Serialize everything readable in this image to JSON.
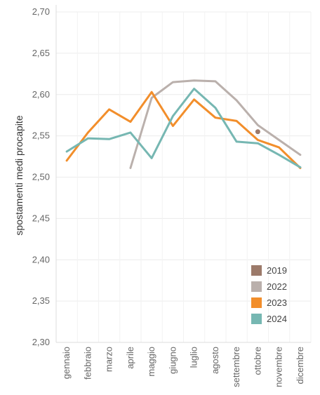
{
  "chart_data": {
    "type": "line",
    "ylabel": "spostamenti medi procapite",
    "xlabel": "",
    "title": "",
    "ylim": [
      2.3,
      2.7
    ],
    "yticks": [
      "2,70",
      "2,65",
      "2,60",
      "2,55",
      "2,50",
      "2,45",
      "2,40",
      "2,35",
      "2,30"
    ],
    "ytick_values": [
      2.7,
      2.65,
      2.6,
      2.55,
      2.5,
      2.45,
      2.4,
      2.35,
      2.3
    ],
    "categories": [
      "gennaio",
      "febbraio",
      "marzo",
      "aprile",
      "maggio",
      "giugno",
      "luglio",
      "agosto",
      "settembre",
      "ottobre",
      "novembre",
      "dicembre"
    ],
    "grid": true,
    "legend_position": "bottom-right",
    "series": [
      {
        "name": "2019",
        "color": "#9c7a6a",
        "marker_only": true,
        "values": [
          null,
          null,
          null,
          null,
          null,
          null,
          null,
          null,
          null,
          2.555,
          null,
          null
        ]
      },
      {
        "name": "2022",
        "color": "#bab0ac",
        "values": [
          null,
          null,
          null,
          2.511,
          2.596,
          2.615,
          2.617,
          2.616,
          2.593,
          2.563,
          2.545,
          2.527
        ]
      },
      {
        "name": "2023",
        "color": "#f28e2b",
        "values": [
          2.52,
          2.554,
          2.582,
          2.567,
          2.603,
          2.562,
          2.594,
          2.572,
          2.568,
          2.545,
          2.536,
          2.511
        ]
      },
      {
        "name": "2024",
        "color": "#76b7b2",
        "values": [
          2.531,
          2.547,
          2.546,
          2.554,
          2.523,
          2.574,
          2.607,
          2.584,
          2.543,
          2.541,
          2.527,
          2.512
        ]
      }
    ]
  }
}
